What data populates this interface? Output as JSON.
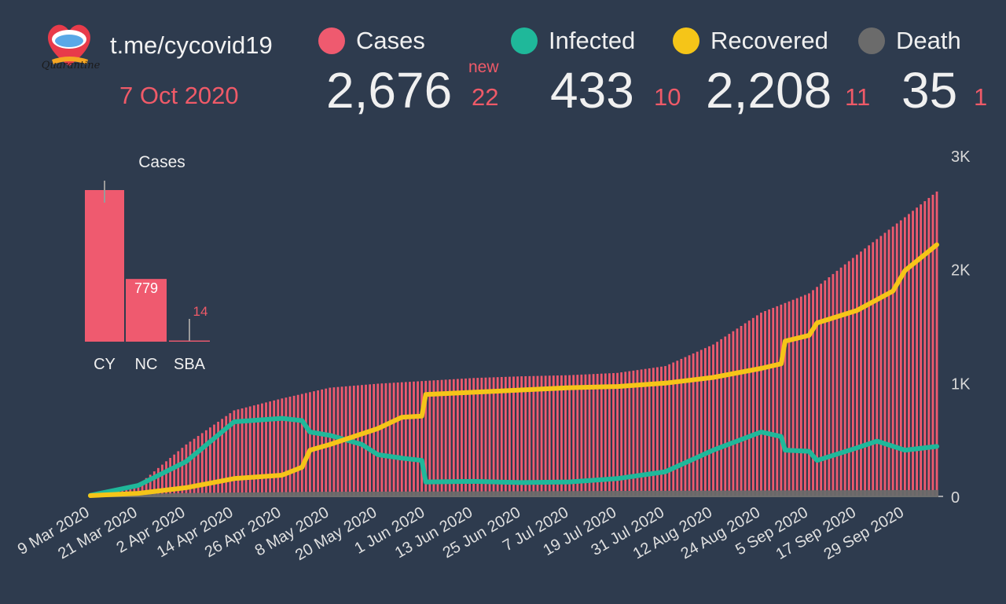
{
  "header": {
    "channel": "t.me/cycovid19",
    "date": "7 Oct 2020",
    "logo_text": "Quarantine"
  },
  "legend": [
    {
      "name": "Cases",
      "color": "#ef5a6f"
    },
    {
      "name": "Infected",
      "color": "#1fb89a"
    },
    {
      "name": "Recovered",
      "color": "#f5c518"
    },
    {
      "name": "Death",
      "color": "#6b6b6b"
    }
  ],
  "stats": {
    "new_label": "new",
    "cases": {
      "value": "2,676",
      "delta": "22"
    },
    "infected": {
      "value": "433",
      "delta": "10"
    },
    "recovered": {
      "value": "2,208",
      "delta": "11"
    },
    "death": {
      "value": "35",
      "delta": "1"
    }
  },
  "colors": {
    "background": "#2e3b4e",
    "cases_bar": "#ef5a6f",
    "infected_line": "#1fb89a",
    "recovered_line": "#f5c518",
    "death": "#6b6b6b",
    "highlight": "#ef5a68"
  },
  "chart_data": [
    {
      "type": "bar",
      "title": "Cases",
      "categories": [
        "CY",
        "NC",
        "SBA"
      ],
      "values": [
        1883,
        779,
        14
      ],
      "data_labels": [
        "",
        "779",
        "14"
      ],
      "ylim": [
        0,
        2000
      ]
    },
    {
      "type": "bar",
      "title": "",
      "note": "cumulative cases as bars; infected, recovered and deaths as lines",
      "x_start": "2020-03-09",
      "x_end": "2020-10-07",
      "xtick_labels": [
        "9 Mar 2020",
        "21 Mar 2020",
        "2 Apr 2020",
        "14 Apr 2020",
        "26 Apr 2020",
        "8 May 2020",
        "20 May 2020",
        "1 Jun 2020",
        "13 Jun 2020",
        "25 Jun 2020",
        "7 Jul 2020",
        "19 Jul 2020",
        "31 Jul 2020",
        "12 Aug 2020",
        "24 Aug 2020",
        "5 Sep 2020",
        "17 Sep 2020",
        "29 Sep 2020"
      ],
      "ytick_labels": [
        "0",
        "1K",
        "2K",
        "3K"
      ],
      "ylim": [
        0,
        3000
      ],
      "series": [
        {
          "name": "Cases",
          "kind": "bar",
          "x": [
            "2020-03-09",
            "2020-03-21",
            "2020-04-02",
            "2020-04-14",
            "2020-04-26",
            "2020-05-08",
            "2020-05-20",
            "2020-06-01",
            "2020-06-13",
            "2020-06-25",
            "2020-07-07",
            "2020-07-19",
            "2020-07-31",
            "2020-08-12",
            "2020-08-24",
            "2020-09-05",
            "2020-09-17",
            "2020-09-29",
            "2020-10-07"
          ],
          "values": [
            2,
            95,
            450,
            750,
            855,
            950,
            985,
            1010,
            1035,
            1050,
            1060,
            1080,
            1140,
            1330,
            1610,
            1780,
            2120,
            2450,
            2676
          ]
        },
        {
          "name": "Infected",
          "kind": "line",
          "x": [
            "2020-03-09",
            "2020-03-21",
            "2020-04-02",
            "2020-04-14",
            "2020-04-26",
            "2020-05-01",
            "2020-05-03",
            "2020-05-08",
            "2020-05-16",
            "2020-05-20",
            "2020-05-26",
            "2020-05-31",
            "2020-06-01",
            "2020-06-13",
            "2020-06-25",
            "2020-07-07",
            "2020-07-19",
            "2020-07-31",
            "2020-08-12",
            "2020-08-24",
            "2020-08-29",
            "2020-08-30",
            "2020-09-05",
            "2020-09-07",
            "2020-09-17",
            "2020-09-22",
            "2020-09-29",
            "2020-10-07"
          ],
          "values": [
            2,
            90,
            300,
            650,
            680,
            660,
            560,
            530,
            450,
            360,
            330,
            310,
            120,
            125,
            115,
            120,
            150,
            210,
            400,
            560,
            520,
            400,
            390,
            310,
            420,
            480,
            400,
            433
          ]
        },
        {
          "name": "Recovered",
          "kind": "line",
          "x": [
            "2020-03-09",
            "2020-03-21",
            "2020-04-02",
            "2020-04-14",
            "2020-04-26",
            "2020-05-01",
            "2020-05-03",
            "2020-05-08",
            "2020-05-20",
            "2020-05-26",
            "2020-05-31",
            "2020-06-01",
            "2020-06-13",
            "2020-06-25",
            "2020-07-07",
            "2020-07-19",
            "2020-07-31",
            "2020-08-12",
            "2020-08-24",
            "2020-08-29",
            "2020-08-30",
            "2020-09-05",
            "2020-09-07",
            "2020-09-17",
            "2020-09-26",
            "2020-09-29",
            "2020-10-07"
          ],
          "values": [
            0,
            20,
            70,
            150,
            180,
            250,
            400,
            450,
            590,
            690,
            700,
            890,
            910,
            930,
            950,
            960,
            990,
            1040,
            1120,
            1160,
            1360,
            1410,
            1520,
            1630,
            1800,
            1980,
            2208
          ]
        },
        {
          "name": "Death",
          "kind": "line",
          "x": [
            "2020-03-09",
            "2020-03-21",
            "2020-04-02",
            "2020-05-01",
            "2020-10-07"
          ],
          "values": [
            0,
            1,
            9,
            19,
            35
          ]
        }
      ]
    }
  ]
}
